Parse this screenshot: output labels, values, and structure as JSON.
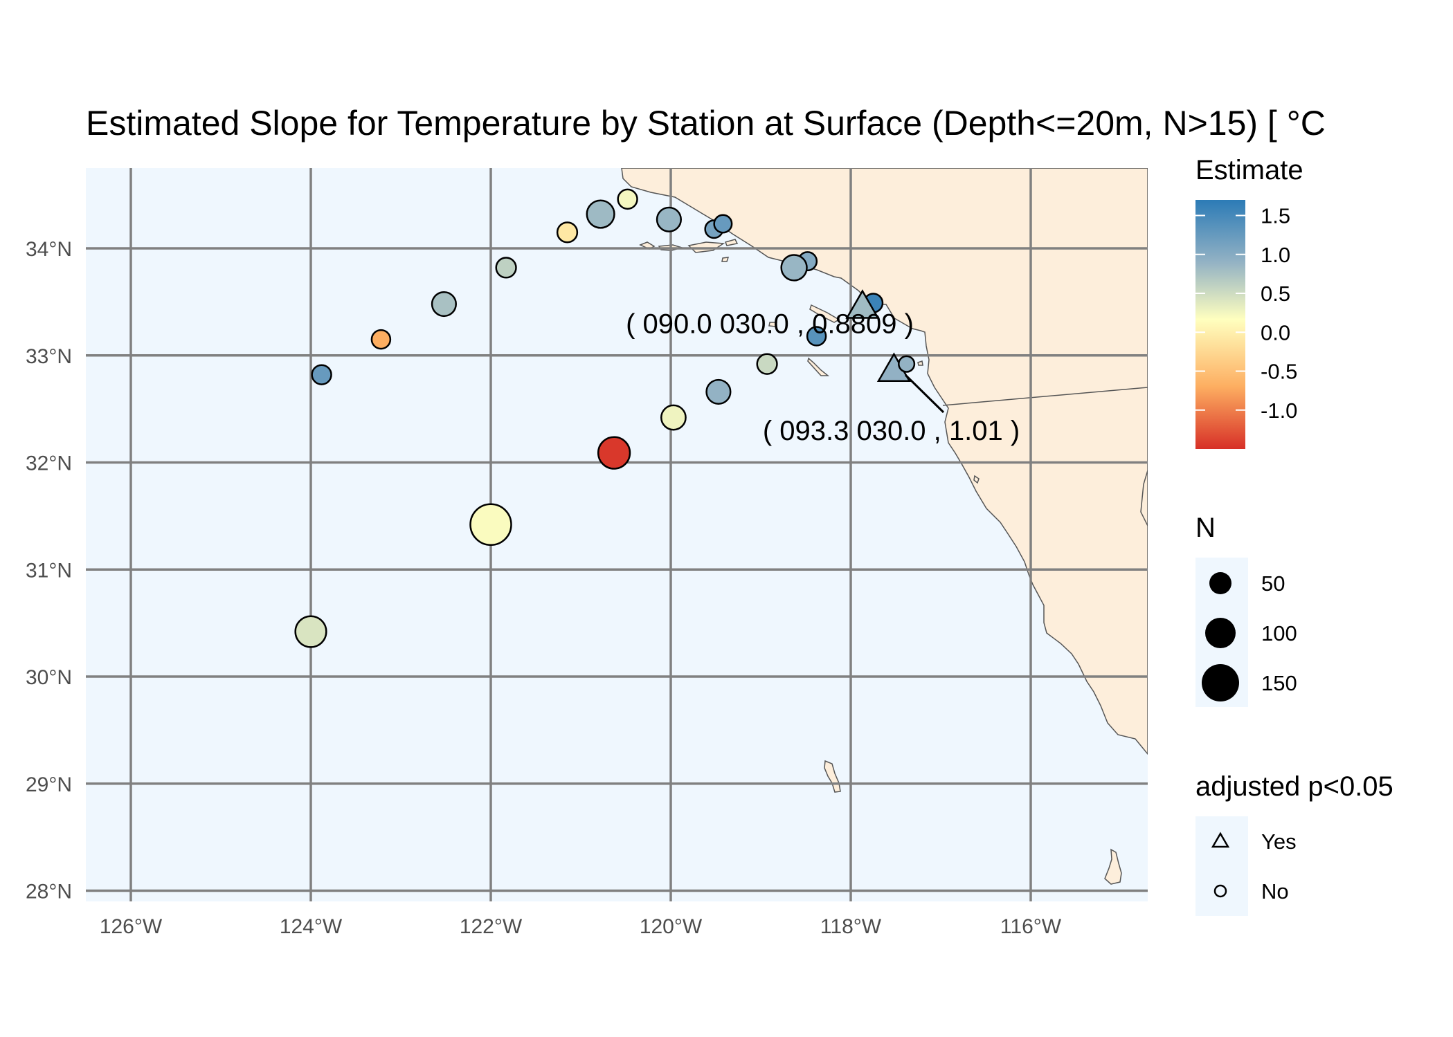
{
  "title": "Estimated Slope for Temperature by Station at Surface (Depth<=20m, N>15) [ °C",
  "map": {
    "ocean_color": "#eff7fe",
    "land_color": "#fdeedb",
    "grid_color": "#808080",
    "lon_range": [
      -126.5,
      -114.7
    ],
    "lat_range": [
      27.9,
      34.75
    ],
    "lon_ticks": [
      -126,
      -124,
      -122,
      -120,
      -118,
      -116
    ],
    "lon_labels": [
      "126°W",
      "124°W",
      "122°W",
      "120°W",
      "118°W",
      "116°W"
    ],
    "lat_ticks": [
      28,
      29,
      30,
      31,
      32,
      33,
      34
    ],
    "lat_labels": [
      "28°N",
      "29°N",
      "30°N",
      "31°N",
      "32°N",
      "33°N",
      "34°N"
    ]
  },
  "chart_data": {
    "type": "scatter",
    "x_field": "longitude",
    "y_field": "latitude",
    "points": [
      {
        "lon": -120.48,
        "lat": 34.46,
        "estimate": 0.1,
        "n": 20,
        "sig": false
      },
      {
        "lon": -120.78,
        "lat": 34.32,
        "estimate": 0.9,
        "n": 55,
        "sig": false
      },
      {
        "lon": -121.15,
        "lat": 34.15,
        "estimate": -0.2,
        "n": 22,
        "sig": false
      },
      {
        "lon": -120.02,
        "lat": 34.27,
        "estimate": 0.95,
        "n": 38,
        "sig": false
      },
      {
        "lon": -119.52,
        "lat": 34.18,
        "estimate": 1.2,
        "n": 15,
        "sig": false
      },
      {
        "lon": -119.42,
        "lat": 34.23,
        "estimate": 1.3,
        "n": 15,
        "sig": false
      },
      {
        "lon": -118.48,
        "lat": 33.88,
        "estimate": 1.1,
        "n": 17,
        "sig": false
      },
      {
        "lon": -118.63,
        "lat": 33.82,
        "estimate": 0.95,
        "n": 45,
        "sig": false
      },
      {
        "lon": -121.83,
        "lat": 33.82,
        "estimate": 0.6,
        "n": 22,
        "sig": false
      },
      {
        "lon": -122.52,
        "lat": 33.48,
        "estimate": 0.8,
        "n": 38,
        "sig": false
      },
      {
        "lon": -117.75,
        "lat": 33.49,
        "estimate": 1.6,
        "n": 18,
        "sig": false
      },
      {
        "lon": -117.87,
        "lat": 33.45,
        "estimate": 0.8809,
        "n": 60,
        "sig": true
      },
      {
        "lon": -118.38,
        "lat": 33.18,
        "estimate": 1.4,
        "n": 18,
        "sig": false
      },
      {
        "lon": -123.22,
        "lat": 33.15,
        "estimate": -0.7,
        "n": 18,
        "sig": false
      },
      {
        "lon": -118.93,
        "lat": 32.92,
        "estimate": 0.5,
        "n": 22,
        "sig": false
      },
      {
        "lon": -117.52,
        "lat": 32.86,
        "estimate": 1.01,
        "n": 60,
        "sig": true
      },
      {
        "lon": -117.38,
        "lat": 32.92,
        "estimate": 1.0,
        "n": 10,
        "sig": false
      },
      {
        "lon": -123.88,
        "lat": 32.82,
        "estimate": 1.3,
        "n": 20,
        "sig": false
      },
      {
        "lon": -119.47,
        "lat": 32.66,
        "estimate": 1.0,
        "n": 38,
        "sig": false
      },
      {
        "lon": -119.97,
        "lat": 32.42,
        "estimate": 0.15,
        "n": 40,
        "sig": false
      },
      {
        "lon": -120.63,
        "lat": 32.09,
        "estimate": -1.45,
        "n": 80,
        "sig": false
      },
      {
        "lon": -122.0,
        "lat": 31.42,
        "estimate": 0.05,
        "n": 150,
        "sig": false
      },
      {
        "lon": -124.0,
        "lat": 30.42,
        "estimate": 0.35,
        "n": 75,
        "sig": false
      }
    ],
    "labels": [
      {
        "text": "( 090.0 030.0 , 0.8809 )",
        "lon": -118.9,
        "lat": 33.3
      },
      {
        "text": "( 093.3 030.0 , 1.01 )",
        "lon": -117.55,
        "lat": 32.3
      }
    ]
  },
  "legends": {
    "estimate": {
      "title": "Estimate",
      "range": [
        -1.5,
        1.7
      ],
      "ticks": [
        1.5,
        1.0,
        0.5,
        0.0,
        -0.5,
        -1.0
      ],
      "tick_labels": [
        "1.5",
        "1.0",
        "0.5",
        "0.0",
        "-0.5",
        "-1.0"
      ],
      "colors": [
        "#2c7bb6",
        "#93b2c4",
        "#ffffbf",
        "#fdae61",
        "#d73027"
      ]
    },
    "n": {
      "title": "N",
      "values": [
        50,
        100,
        150
      ],
      "labels": [
        "50",
        "100",
        "150"
      ]
    },
    "sig": {
      "title": "adjusted p<0.05",
      "labels": [
        "Yes",
        "No"
      ]
    }
  }
}
